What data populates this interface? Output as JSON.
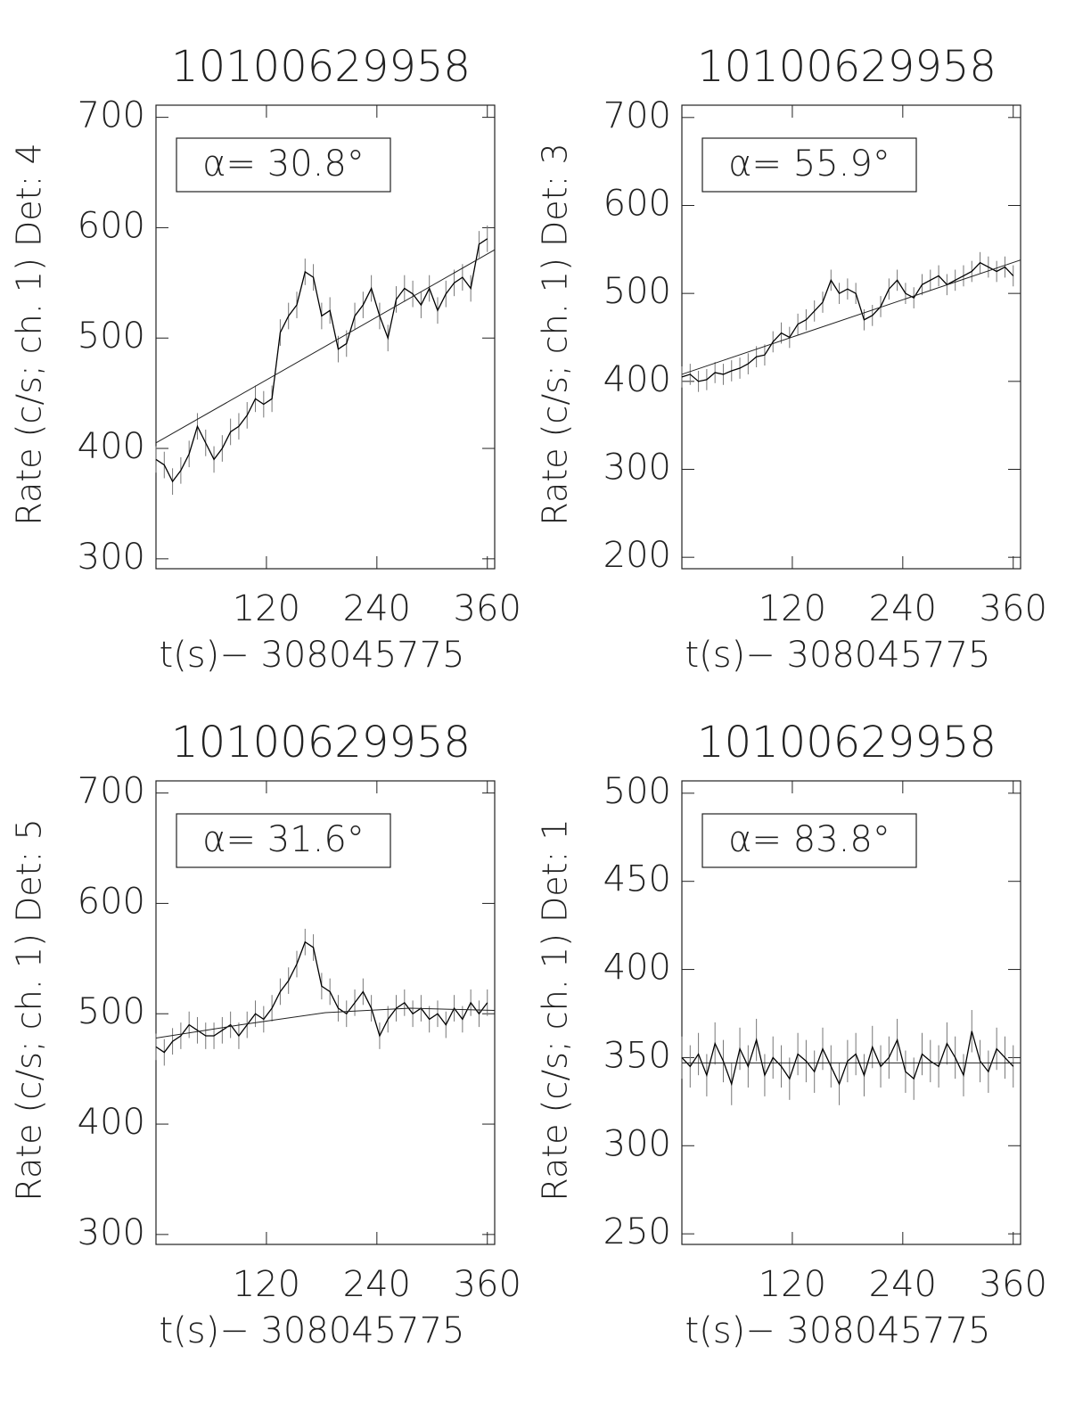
{
  "chart_data": [
    {
      "type": "line",
      "title": "10100629958",
      "x_label": "t(s)− 308045775",
      "y_label": "Rate (c/s; ch. 1) Det: 4",
      "annotation": "α= 30.8°",
      "x": [
        0,
        9,
        18,
        27,
        36,
        45,
        54,
        63,
        72,
        81,
        90,
        99,
        108,
        117,
        126,
        135,
        144,
        153,
        162,
        171,
        180,
        189,
        198,
        207,
        216,
        225,
        234,
        243,
        252,
        261,
        270,
        279,
        288,
        297,
        306,
        315,
        324,
        333,
        342,
        351,
        360
      ],
      "series": [
        {
          "color": "#000000",
          "error": 12,
          "values": [
            390,
            385,
            370,
            380,
            395,
            420,
            405,
            390,
            400,
            415,
            420,
            430,
            445,
            440,
            445,
            505,
            520,
            530,
            560,
            555,
            520,
            525,
            490,
            495,
            520,
            530,
            545,
            520,
            500,
            535,
            545,
            540,
            530,
            545,
            525,
            540,
            550,
            555,
            545,
            585,
            590
          ]
        }
      ],
      "fit": {
        "x": [
          0,
          368
        ],
        "values": [
          405,
          580
        ]
      },
      "xlim": [
        0,
        368
      ],
      "xticks": [
        120,
        240,
        360
      ],
      "ylim": [
        291,
        711
      ],
      "yticks": [
        300,
        400,
        500,
        600,
        700
      ]
    },
    {
      "type": "line",
      "title": "10100629958",
      "x_label": "t(s)− 308045775",
      "y_label": "Rate (c/s; ch. 1) Det: 3",
      "annotation": "α= 55.9°",
      "x": [
        0,
        9,
        18,
        27,
        36,
        45,
        54,
        63,
        72,
        81,
        90,
        99,
        108,
        117,
        126,
        135,
        144,
        153,
        162,
        171,
        180,
        189,
        198,
        207,
        216,
        225,
        234,
        243,
        252,
        261,
        270,
        279,
        288,
        297,
        306,
        315,
        324,
        333,
        342,
        351,
        360
      ],
      "series": [
        {
          "color": "#000000",
          "error": 12,
          "values": [
            405,
            408,
            400,
            402,
            410,
            408,
            412,
            415,
            420,
            428,
            430,
            445,
            455,
            450,
            465,
            470,
            480,
            490,
            515,
            500,
            505,
            500,
            470,
            475,
            485,
            505,
            515,
            500,
            495,
            510,
            515,
            520,
            510,
            515,
            520,
            525,
            535,
            530,
            525,
            530,
            520
          ]
        }
      ],
      "fit": {
        "x": [
          0,
          368
        ],
        "values": [
          408,
          538
        ]
      },
      "xlim": [
        0,
        368
      ],
      "xticks": [
        120,
        240,
        360
      ],
      "ylim": [
        187,
        714
      ],
      "yticks": [
        200,
        300,
        400,
        500,
        600,
        700
      ]
    },
    {
      "type": "line",
      "title": "10100629958",
      "x_label": "t(s)− 308045775",
      "y_label": "Rate (c/s; ch. 1) Det: 5",
      "annotation": "α= 31.6°",
      "x": [
        0,
        9,
        18,
        27,
        36,
        45,
        54,
        63,
        72,
        81,
        90,
        99,
        108,
        117,
        126,
        135,
        144,
        153,
        162,
        171,
        180,
        189,
        198,
        207,
        216,
        225,
        234,
        243,
        252,
        261,
        270,
        279,
        288,
        297,
        306,
        315,
        324,
        333,
        342,
        351,
        360
      ],
      "series": [
        {
          "color": "#000000",
          "error": 12,
          "values": [
            470,
            465,
            475,
            480,
            490,
            485,
            480,
            480,
            485,
            490,
            480,
            490,
            500,
            495,
            505,
            520,
            530,
            545,
            565,
            560,
            525,
            520,
            505,
            500,
            510,
            520,
            505,
            480,
            495,
            505,
            510,
            500,
            505,
            495,
            500,
            490,
            505,
            495,
            510,
            500,
            510
          ]
        }
      ],
      "fit": {
        "x": [
          0,
          92,
          184,
          276,
          368
        ],
        "values": [
          478,
          490,
          501,
          505,
          503
        ]
      },
      "xlim": [
        0,
        368
      ],
      "xticks": [
        120,
        240,
        360
      ],
      "ylim": [
        291,
        711
      ],
      "yticks": [
        300,
        400,
        500,
        600,
        700
      ]
    },
    {
      "type": "line",
      "title": "10100629958",
      "x_label": "t(s)− 308045775",
      "y_label": "Rate (c/s; ch. 1) Det: 1",
      "annotation": "α= 83.8°",
      "x": [
        0,
        9,
        18,
        27,
        36,
        45,
        54,
        63,
        72,
        81,
        90,
        99,
        108,
        117,
        126,
        135,
        144,
        153,
        162,
        171,
        180,
        189,
        198,
        207,
        216,
        225,
        234,
        243,
        252,
        261,
        270,
        279,
        288,
        297,
        306,
        315,
        324,
        333,
        342,
        351,
        360
      ],
      "series": [
        {
          "color": "#000000",
          "error": 12,
          "values": [
            350,
            345,
            352,
            340,
            358,
            348,
            335,
            355,
            345,
            360,
            340,
            350,
            345,
            338,
            352,
            348,
            342,
            355,
            345,
            335,
            348,
            352,
            340,
            356,
            345,
            350,
            360,
            342,
            338,
            352,
            348,
            345,
            358,
            350,
            340,
            365,
            348,
            342,
            355,
            350,
            345
          ]
        }
      ],
      "fit": {
        "x": [
          0,
          368
        ],
        "values": [
          347,
          347
        ]
      },
      "xlim": [
        0,
        368
      ],
      "xticks": [
        120,
        240,
        360
      ],
      "ylim": [
        244,
        507
      ],
      "yticks": [
        250,
        300,
        350,
        400,
        450,
        500
      ]
    }
  ]
}
